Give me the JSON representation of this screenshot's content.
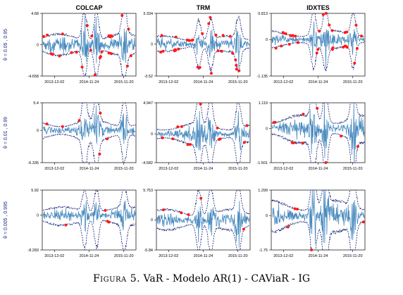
{
  "colors": {
    "returns": "#4a8bbf",
    "var_band": "#0d1a70",
    "exceedance": "#ff1a1a",
    "row_label": "#1a2a80",
    "axis": "#000000"
  },
  "column_titles": [
    "COLCAP",
    "TRM",
    "IDXTES"
  ],
  "row_labels": [
    "θ = 0.05 , 0.95",
    "θ = 0.01 , 0.99",
    "θ = 0.005 , 0.995"
  ],
  "x_ticks": [
    "2013-12-02",
    "2014-11-24",
    "2015-11-20"
  ],
  "caption": {
    "prefix": "Figura 5.",
    "text": "VaR - Modelo AR(1) - CAViaR - IG"
  },
  "chart_data": [
    {
      "type": "line",
      "title": "COLCAP",
      "row_label": "θ = 0.05 , 0.95",
      "ylim": [
        -4.658,
        4.68
      ],
      "y_ticks": [
        "4.68",
        "0",
        "-4.658"
      ],
      "upper_var": 2.1,
      "lower_var": -2.0,
      "exceedances": 28
    },
    {
      "type": "line",
      "title": "TRM",
      "row_label": "θ = 0.05 , 0.95",
      "ylim": [
        -3.52,
        3.334
      ],
      "y_ticks": [
        "3.334",
        "0",
        "-3.52"
      ],
      "upper_var": 1.1,
      "lower_var": -1.1,
      "exceedances": 30
    },
    {
      "type": "line",
      "title": "IDXTES",
      "row_label": "θ = 0.05 , 0.95",
      "ylim": [
        -1.135,
        0.813
      ],
      "y_ticks": [
        "0.813",
        "0",
        "-1.135"
      ],
      "upper_var": 0.35,
      "lower_var": -0.35,
      "exceedances": 30
    },
    {
      "type": "line",
      "title": "COLCAP",
      "row_label": "θ = 0.01 , 0.99",
      "ylim": [
        -6.335,
        5.4
      ],
      "y_ticks": [
        "5.4",
        "0",
        "-6.335"
      ],
      "upper_var": 2.6,
      "lower_var": -2.8,
      "exceedances": 6
    },
    {
      "type": "line",
      "title": "TRM",
      "row_label": "θ = 0.01 , 0.99",
      "ylim": [
        -4.582,
        4.947
      ],
      "y_ticks": [
        "4.947",
        "0",
        "-4.582"
      ],
      "upper_var": 2.2,
      "lower_var": -2.2,
      "exceedances": 12
    },
    {
      "type": "line",
      "title": "IDXTES",
      "row_label": "θ = 0.01 , 0.99",
      "ylim": [
        -1.501,
        1.119
      ],
      "y_ticks": [
        "1.119",
        "0",
        "-1.501"
      ],
      "upper_var": 0.75,
      "lower_var": -0.85,
      "exceedances": 10
    },
    {
      "type": "line",
      "title": "COLCAP",
      "row_label": "θ = 0.005 , 0.995",
      "ylim": [
        -8.283,
        5.92
      ],
      "y_ticks": [
        "5.92",
        "0",
        "-8.283"
      ],
      "upper_var": 2.5,
      "lower_var": -3.2,
      "exceedances": 4
    },
    {
      "type": "line",
      "title": "TRM",
      "row_label": "θ = 0.005 , 0.995",
      "ylim": [
        -5.84,
        5.753
      ],
      "y_ticks": [
        "5.753",
        "0",
        "-5.84"
      ],
      "upper_var": 2.6,
      "lower_var": -2.6,
      "exceedances": 5
    },
    {
      "type": "line",
      "title": "IDXTES",
      "row_label": "θ = 0.005 , 0.995",
      "ylim": [
        -1.75,
        1.299
      ],
      "y_ticks": [
        "1.299",
        "0",
        "-1.75"
      ],
      "upper_var": 1.0,
      "lower_var": -1.1,
      "exceedances": 5
    }
  ]
}
